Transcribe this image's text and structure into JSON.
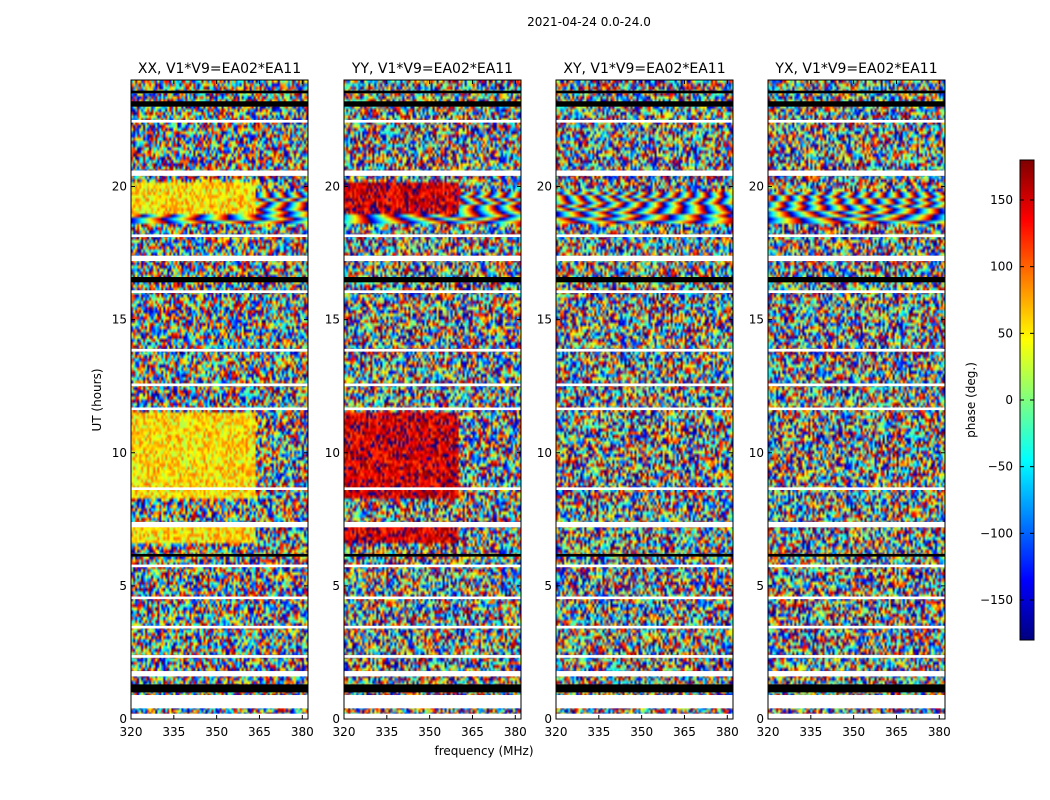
{
  "figure": {
    "suptitle": "2021-04-24 0.0-24.0",
    "xlabel": "frequency (MHz)",
    "ylabel": "UT (hours)"
  },
  "colorbar": {
    "label": "phase (deg.)",
    "range": [
      -180,
      180
    ],
    "ticks": [
      150,
      100,
      50,
      0,
      -50,
      -100,
      -150
    ],
    "tick_labels": [
      "150",
      "100",
      "50",
      "0",
      "−50",
      "−100",
      "−150"
    ],
    "colormap": [
      "#00007f",
      "#0000ff",
      "#007fff",
      "#00ffff",
      "#7fff7f",
      "#ffff00",
      "#ff7f00",
      "#ff0000",
      "#7f0000"
    ]
  },
  "chart_data": {
    "type": "heatmap",
    "quantity": "visibility phase (deg.)",
    "x_range": [
      320,
      382
    ],
    "y_range": [
      0,
      24
    ],
    "x_ticks": [
      320,
      335,
      350,
      365,
      380
    ],
    "y_ticks": [
      0,
      5,
      10,
      15,
      20
    ],
    "panels": [
      {
        "title": "XX, V1*V9=EA02*EA11",
        "x_tick_labels": [
          "320",
          "335",
          "350",
          "365",
          "380"
        ],
        "y_tick_labels": [
          "0",
          "5",
          "10",
          "15",
          "20"
        ],
        "coherent_phase": 55,
        "coherent_until_mhz": 364
      },
      {
        "title": "YY, V1*V9=EA02*EA11",
        "x_tick_labels": [
          "320",
          "335",
          "350",
          "365",
          "380"
        ],
        "y_tick_labels": [
          "0",
          "5",
          "10",
          "15",
          "20"
        ],
        "coherent_phase": 150,
        "coherent_until_mhz": 360
      },
      {
        "title": "XY, V1*V9=EA02*EA11",
        "x_tick_labels": [
          "320",
          "335",
          "350",
          "365",
          "380"
        ],
        "y_tick_labels": [
          "0",
          "5",
          "10",
          "15",
          "20"
        ],
        "coherent_phase": null,
        "coherent_until_mhz": null
      },
      {
        "title": "YX, V1*V9=EA02*EA11",
        "x_tick_labels": [
          "320",
          "335",
          "350",
          "365",
          "380"
        ],
        "y_tick_labels": [
          "0",
          "5",
          "10",
          "15",
          "20"
        ],
        "coherent_phase": null,
        "coherent_until_mhz": null
      }
    ],
    "flagged_ut_ranges_white": [
      [
        0.0,
        0.2
      ],
      [
        0.4,
        0.9
      ],
      [
        1.6,
        1.8
      ],
      [
        2.3,
        2.4
      ],
      [
        3.4,
        3.5
      ],
      [
        4.5,
        4.6
      ],
      [
        5.7,
        5.8
      ],
      [
        7.2,
        7.4
      ],
      [
        8.6,
        8.7
      ],
      [
        11.6,
        11.7
      ],
      [
        12.5,
        12.6
      ],
      [
        13.8,
        13.9
      ],
      [
        16.0,
        16.1
      ],
      [
        17.2,
        17.4
      ],
      [
        18.1,
        18.2
      ],
      [
        20.4,
        20.6
      ],
      [
        22.4,
        22.5
      ]
    ],
    "flagged_ut_ranges_black": [
      [
        1.0,
        1.3
      ],
      [
        6.1,
        6.2
      ],
      [
        16.4,
        16.6
      ],
      [
        23.0,
        23.2
      ],
      [
        23.5,
        23.6
      ]
    ]
  }
}
